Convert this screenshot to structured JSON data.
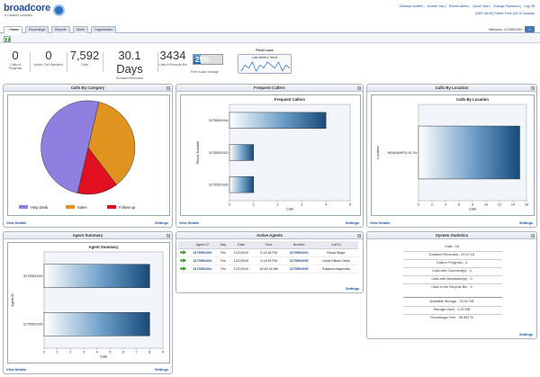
{
  "brand": {
    "name": "broadcore",
    "tagline": "a Calabrio company"
  },
  "toplinks": [
    "Desktop Notifier",
    "Archive Tool",
    "Recent Alerts",
    "Quick Start",
    "Change Password",
    "Log Off"
  ],
  "timezone": "(GMT-08:00) Pacific Time (US & Canada)",
  "tabs": [
    "Home",
    "Recordings",
    "Reports",
    "Alerts",
    "Organization"
  ],
  "welcome": "Welcome, 3175551004",
  "stats": [
    {
      "value": "0",
      "label": "Calls in Progress"
    },
    {
      "value": "0",
      "label": "Active Call Handlers"
    },
    {
      "value": "7,592",
      "label": "Calls"
    },
    {
      "value": "30.1 Days",
      "label": "Duration Recorded"
    },
    {
      "value": "3434",
      "label": "Calls in Recycle Bin"
    }
  ],
  "storage": {
    "value": "25%",
    "fraction": 0.25,
    "label": "Free Audio Storage"
  },
  "first_look": {
    "title": "First Look",
    "trend_title": "Last Week's Trend",
    "trend": [
      3,
      5,
      4,
      6,
      3,
      5,
      4,
      6,
      5,
      4,
      6,
      3,
      5,
      4
    ]
  },
  "panels": {
    "calls_by_category": {
      "title": "Calls By Category",
      "view_details": "View Details",
      "settings": "Settings"
    },
    "frequent_callers": {
      "title": "Frequent Callers",
      "view_details": "View Details",
      "settings": "Settings"
    },
    "calls_by_location": {
      "title": "Calls By Location",
      "view_details": "View Details",
      "settings": "Settings"
    },
    "agent_summary": {
      "title": "Agent Summary",
      "view_details": "View Details",
      "settings": "Settings"
    },
    "active_agents": {
      "title": "Active Agents",
      "settings": "Settings"
    },
    "system_statistics": {
      "title": "System Statistics",
      "settings": "Settings"
    }
  },
  "chart_data": [
    {
      "type": "pie",
      "title": "",
      "categories": [
        "Help Desk",
        "Sales",
        "Follow-up"
      ],
      "values": [
        50,
        36,
        14
      ],
      "colors": [
        "#8f7fe0",
        "#e0931f",
        "#e01020"
      ],
      "legend_position": "bottom"
    },
    {
      "type": "bar",
      "orientation": "horizontal",
      "title": "Frequent Callers",
      "categories": [
        "3175551004",
        "3175551002",
        "3175551005"
      ],
      "values": [
        4,
        1,
        1
      ],
      "xlabel": "Calls",
      "ylabel": "Phone Number",
      "xlim": [
        0,
        5
      ],
      "xticks": [
        0,
        1,
        2,
        3,
        4,
        5
      ]
    },
    {
      "type": "bar",
      "orientation": "horizontal",
      "title": "Calls By Location",
      "categories": [
        "INDIANAPOLIS, IN"
      ],
      "values": [
        15
      ],
      "xlabel": "Calls",
      "ylabel": "Location",
      "xlim": [
        0,
        16
      ],
      "xticks": [
        0,
        2,
        4,
        6,
        8,
        10,
        12,
        14,
        16
      ]
    },
    {
      "type": "bar",
      "orientation": "horizontal",
      "title": "Agent Summary",
      "categories": [
        "3175551004",
        "3175551005"
      ],
      "values": [
        8,
        8
      ],
      "xlabel": "Calls",
      "ylabel": "Agent ID",
      "xlim": [
        0,
        9
      ],
      "xticks": [
        0,
        1,
        2,
        3,
        4,
        5,
        6,
        7,
        8,
        9
      ]
    }
  ],
  "active_agents": {
    "columns": [
      "Agent ID",
      "Day",
      "Date",
      "Time",
      "Number",
      "Call ID"
    ],
    "rows": [
      [
        "3175551005",
        "Thu",
        "1/21/2010",
        "3:14:36 PM",
        "3175551004",
        "Rusia Stage"
      ],
      [
        "3175551004",
        "Thu",
        "1/21/2010",
        "3:14:35 PM",
        "3175551005",
        "Linda Ellison Desk"
      ],
      [
        "3175551004",
        "Thu",
        "1/21/2010",
        "10:46:14 AM",
        "3175551005",
        "Sukanta Majumdar"
      ]
    ]
  },
  "system_statistics": {
    "group1": [
      "Calls - 16",
      "Duration Recorded - 00:07:16",
      "Calls in Progress - 3",
      "Calls with Comment(s) - 0",
      "Calls with Annotation(s) - 0",
      "Calls in the Recycle Bin - 0"
    ],
    "group2": [
      "Available Storage - 15.00 GB",
      "Storage Used - 1.00 MB",
      "Percentage Free - 99.993 %"
    ]
  }
}
